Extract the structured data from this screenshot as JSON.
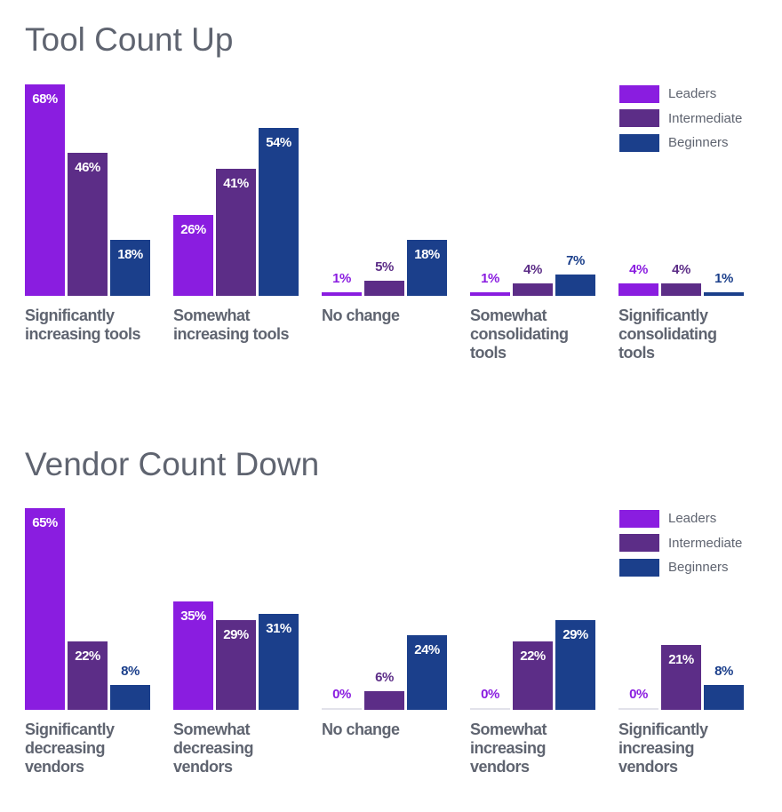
{
  "legend": [
    {
      "name": "Leaders",
      "color": "#8a1de0"
    },
    {
      "name": "Intermediate",
      "color": "#5c2d87"
    },
    {
      "name": "Beginners",
      "color": "#1b3f8b"
    }
  ],
  "chart_data": [
    {
      "type": "bar",
      "title": "Tool Count Up",
      "categories": [
        "Significantly increasing tools",
        "Somewhat increasing tools",
        "No change",
        "Somewhat consolidating tools",
        "Significantly consolidating tools"
      ],
      "series": [
        {
          "name": "Leaders",
          "values": [
            68,
            26,
            1,
            1,
            4
          ]
        },
        {
          "name": "Intermediate",
          "values": [
            46,
            41,
            5,
            4,
            4
          ]
        },
        {
          "name": "Beginners",
          "values": [
            18,
            54,
            18,
            7,
            1
          ]
        }
      ],
      "unit": "%",
      "ylim": [
        0,
        70
      ],
      "legend": "top-right"
    },
    {
      "type": "bar",
      "title": "Vendor Count Down",
      "categories": [
        "Significantly decreasing vendors",
        "Somewhat decreasing vendors",
        "No change",
        "Somewhat increasing vendors",
        "Significantly increasing vendors"
      ],
      "series": [
        {
          "name": "Leaders",
          "values": [
            65,
            35,
            0,
            0,
            0
          ]
        },
        {
          "name": "Intermediate",
          "values": [
            22,
            29,
            6,
            22,
            21
          ]
        },
        {
          "name": "Beginners",
          "values": [
            8,
            31,
            24,
            29,
            8
          ]
        }
      ],
      "unit": "%",
      "ylim": [
        0,
        70
      ],
      "legend": "top-right"
    }
  ]
}
